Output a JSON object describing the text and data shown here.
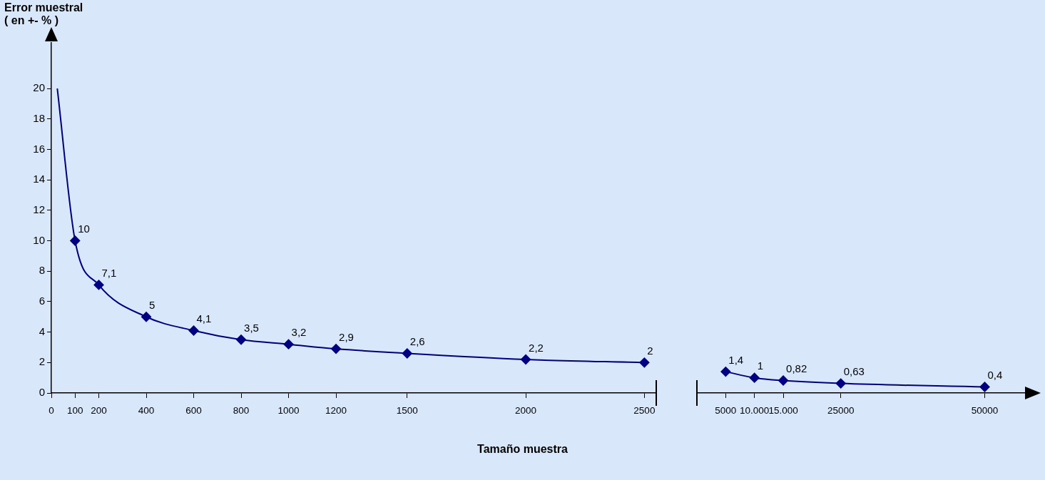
{
  "chart_data": [
    {
      "type": "line",
      "ylabel": "Error muestral ( en +- % )",
      "xlabel": "Tamaño muestra",
      "color": "#000080",
      "marker": "diamond",
      "x": [
        25,
        100,
        200,
        400,
        600,
        800,
        1000,
        1200,
        1500,
        2000,
        2500
      ],
      "values": [
        20,
        10,
        7.1,
        5,
        4.1,
        3.5,
        3.2,
        2.9,
        2.6,
        2.2,
        2
      ],
      "value_labels": [
        null,
        "10",
        "7,1",
        "5",
        "4,1",
        "3,5",
        "3,2",
        "2,9",
        "2,6",
        "2,2",
        "2"
      ],
      "xlim": [
        0,
        2550
      ],
      "xticks": [
        0,
        100,
        200,
        400,
        600,
        800,
        1000,
        1200,
        1500,
        2000,
        2500
      ],
      "ylim": [
        0,
        23
      ],
      "yticks": [
        0,
        2,
        4,
        6,
        8,
        10,
        12,
        14,
        16,
        18,
        20
      ]
    },
    {
      "type": "line",
      "color": "#000080",
      "marker": "diamond",
      "x": [
        5000,
        10000,
        15000,
        25000,
        50000
      ],
      "values": [
        1.4,
        1,
        0.82,
        0.63,
        0.4
      ],
      "value_labels": [
        "1,4",
        "1",
        "0,82",
        "0,63",
        "0,4"
      ],
      "xlim": [
        0,
        57000
      ],
      "xticks": [
        5000,
        {
          "value": 10000,
          "label": "10.000"
        },
        {
          "value": 15000,
          "label": "15.000"
        },
        25000,
        50000
      ],
      "tick_labels": "x"
    }
  ]
}
